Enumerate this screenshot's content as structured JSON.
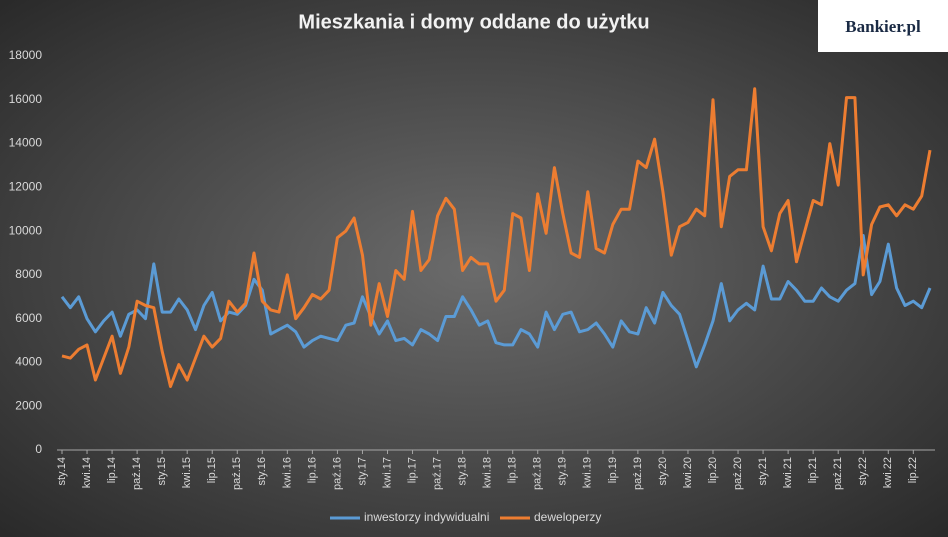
{
  "logo": "Bankier.pl",
  "chart_data": {
    "type": "line",
    "title": "Mieszkania i domy oddane do użytku",
    "categories": [
      "sty.14",
      null,
      null,
      "kwi.14",
      null,
      null,
      "lip.14",
      null,
      null,
      "paź.14",
      null,
      null,
      "sty.15",
      null,
      null,
      "kwi.15",
      null,
      null,
      "lip.15",
      null,
      null,
      "paź.15",
      null,
      null,
      "sty.16",
      null,
      null,
      "kwi.16",
      null,
      null,
      "lip.16",
      null,
      null,
      "paź.16",
      null,
      null,
      "sty.17",
      null,
      null,
      "kwi.17",
      null,
      null,
      "lip.17",
      null,
      null,
      "paź.17",
      null,
      null,
      "sty.18",
      null,
      null,
      "kwi.18",
      null,
      null,
      "lip.18",
      null,
      null,
      "paź.18",
      null,
      null,
      "sty.19",
      null,
      null,
      "kwi.19",
      null,
      null,
      "lip.19",
      null,
      null,
      "paź.19",
      null,
      null,
      "sty.20",
      null,
      null,
      "kwi.20",
      null,
      null,
      "lip.20",
      null,
      null,
      "paź.20",
      null,
      null,
      "sty.21",
      null,
      null,
      "kwi.21",
      null,
      null,
      "lip.21",
      null,
      null,
      "paź.21",
      null,
      null,
      "sty.22",
      null,
      null,
      "kwi.22",
      null,
      null,
      "lip.22",
      null,
      null
    ],
    "series": [
      {
        "name": "inwestorzy indywidualni",
        "color": "#5b9bd5",
        "values": [
          7000,
          6500,
          7000,
          6000,
          5400,
          5900,
          6300,
          5200,
          6200,
          6400,
          6000,
          8500,
          6300,
          6300,
          6900,
          6400,
          5500,
          6600,
          7200,
          5900,
          6300,
          6200,
          6600,
          7800,
          7300,
          5300,
          5500,
          5700,
          5400,
          4700,
          5000,
          5200,
          5100,
          5000,
          5700,
          5800,
          7000,
          6100,
          5300,
          5900,
          5000,
          5100,
          4800,
          5500,
          5300,
          5000,
          6100,
          6100,
          7000,
          6400,
          5700,
          5900,
          4900,
          4800,
          4800,
          5500,
          5300,
          4700,
          6300,
          5500,
          6200,
          6300,
          5400,
          5500,
          5800,
          5300,
          4700,
          5900,
          5400,
          5300,
          6500,
          5800,
          7200,
          6600,
          6200,
          5000,
          3800,
          4800,
          5900,
          7600,
          5900,
          6400,
          6700,
          6400,
          8400,
          6900,
          6900,
          7700,
          7300,
          6800,
          6800,
          7400,
          7000,
          6800,
          7300,
          7600,
          9800,
          7100,
          7700,
          9400,
          7400,
          6600,
          6800,
          6500,
          7400
        ]
      },
      {
        "name": "deweloperzy",
        "color": "#ed7d31",
        "values": [
          4300,
          4200,
          4600,
          4800,
          3200,
          4200,
          5200,
          3500,
          4700,
          6800,
          6600,
          6500,
          4500,
          2900,
          3900,
          3200,
          4200,
          5200,
          4700,
          5100,
          6800,
          6300,
          6700,
          9000,
          6800,
          6400,
          6300,
          8000,
          6000,
          6500,
          7100,
          6900,
          7300,
          9700,
          10000,
          10600,
          8900,
          5700,
          7600,
          6100,
          8200,
          7800,
          10900,
          8200,
          8700,
          10700,
          11500,
          11000,
          8200,
          8800,
          8500,
          8500,
          6800,
          7300,
          10800,
          10600,
          8200,
          11700,
          9900,
          12900,
          10800,
          9000,
          8800,
          11800,
          9200,
          9000,
          10300,
          11000,
          11000,
          13200,
          12900,
          14200,
          11800,
          8900,
          10200,
          10400,
          11000,
          10700,
          16000,
          10200,
          12500,
          12800,
          12800,
          16500,
          10200,
          9100,
          10800,
          11400,
          8600,
          10000,
          11400,
          11200,
          14000,
          12100,
          16100,
          16100,
          8000,
          10300,
          11100,
          11200,
          10700,
          11200,
          11000,
          11600,
          13700
        ]
      }
    ],
    "ylim": [
      0,
      18000
    ],
    "yticks": [
      0,
      2000,
      4000,
      6000,
      8000,
      10000,
      12000,
      14000,
      16000,
      18000
    ],
    "grid": false,
    "legend": "bottom"
  }
}
